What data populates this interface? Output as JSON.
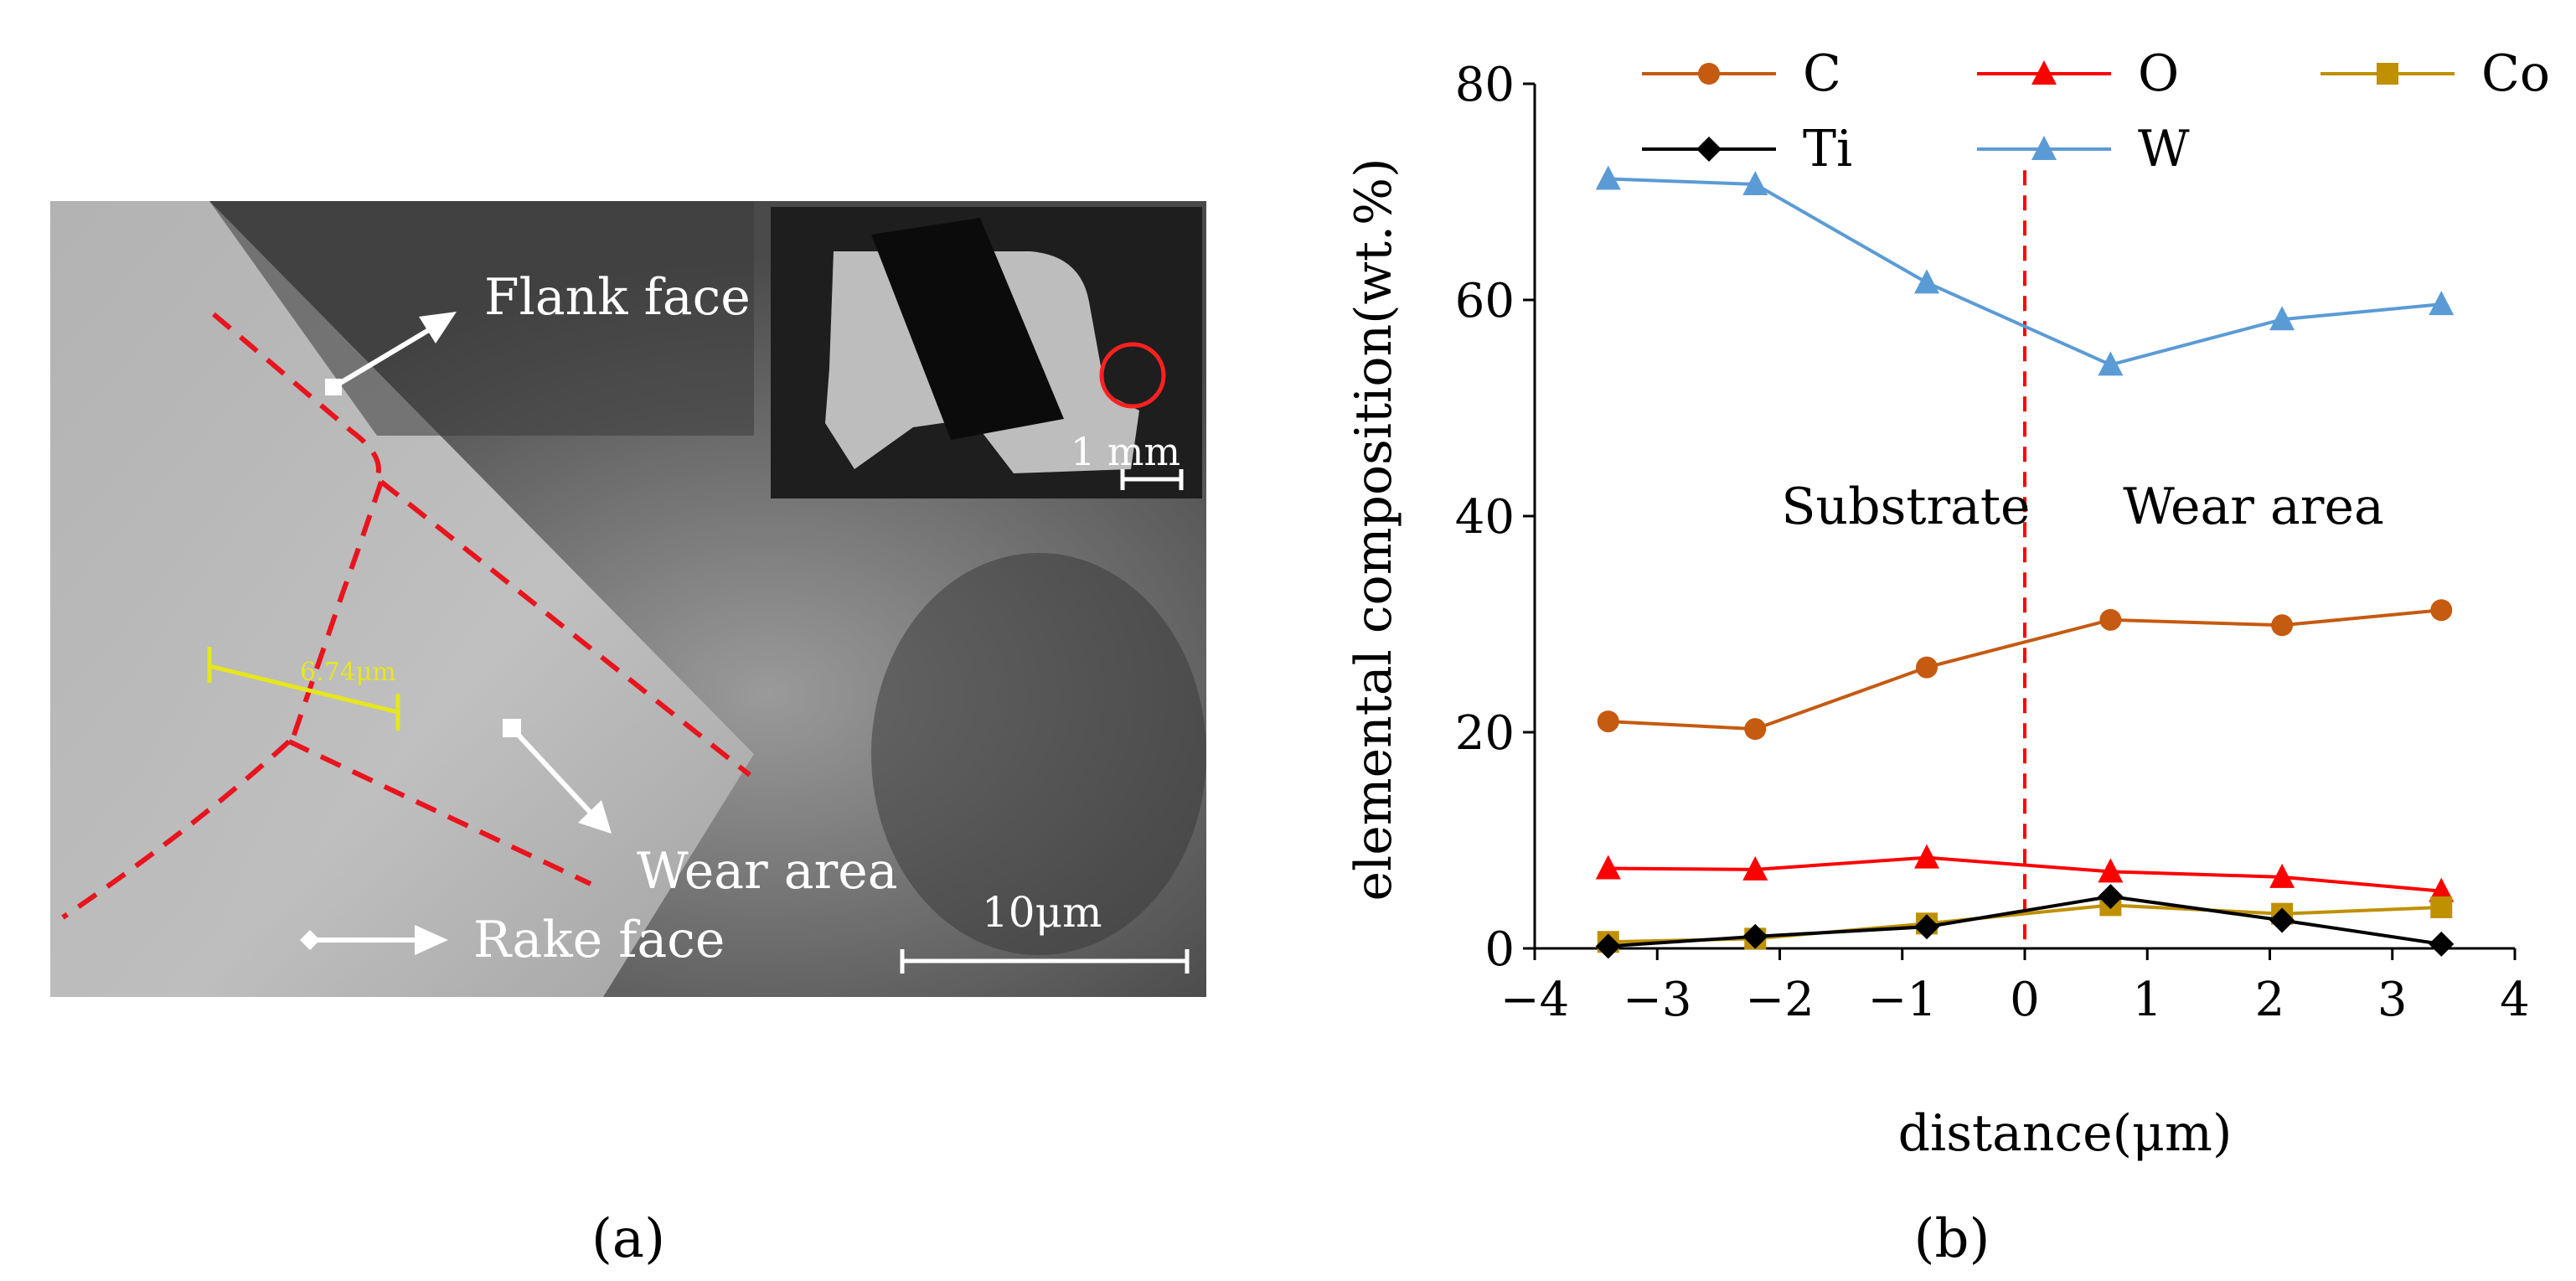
{
  "panel_a": {
    "caption": "(a)",
    "labels": {
      "flank_face": "Flank face",
      "wear_area": "Wear area",
      "rake_face": "Rake face"
    },
    "measurement": "6.74μm",
    "scale_bar": "10μm",
    "inset_scale": "1 mm",
    "colors": {
      "dashed": "#e8141e",
      "measure": "#e6e61e",
      "arrow": "#ffffff"
    }
  },
  "panel_b": {
    "caption": "(b)"
  },
  "chart_data": {
    "type": "line",
    "xlabel": "distance(μm)",
    "ylabel": "elemental composition(wt.%)",
    "xlim": [
      -4,
      4
    ],
    "ylim": [
      0,
      80
    ],
    "xticks": [
      -4,
      -3,
      -2,
      -1,
      0,
      1,
      2,
      3,
      4
    ],
    "xtick_labels": [
      "−4",
      "−3",
      "−2",
      "−1",
      "0",
      "1",
      "2",
      "3",
      "4"
    ],
    "yticks": [
      0,
      20,
      40,
      60,
      80
    ],
    "ytick_labels": [
      "0",
      "20",
      "40",
      "60",
      "80"
    ],
    "x": [
      -3.4,
      -2.2,
      -0.8,
      0.7,
      2.1,
      3.4
    ],
    "series": [
      {
        "name": "C",
        "color": "#c55a11",
        "marker": "circle",
        "values": [
          21.0,
          20.3,
          26.0,
          30.4,
          29.9,
          31.3
        ]
      },
      {
        "name": "O",
        "color": "#ff0000",
        "marker": "triangle",
        "values": [
          7.4,
          7.3,
          8.4,
          7.1,
          6.6,
          5.3
        ]
      },
      {
        "name": "Co",
        "color": "#bf9000",
        "marker": "square",
        "values": [
          0.6,
          0.9,
          2.3,
          4.0,
          3.2,
          3.8
        ]
      },
      {
        "name": "Ti",
        "color": "#000000",
        "marker": "diamond",
        "values": [
          0.2,
          1.1,
          2.0,
          4.8,
          2.6,
          0.4
        ]
      },
      {
        "name": "W",
        "color": "#5b9bd5",
        "marker": "triangle",
        "values": [
          71.2,
          70.7,
          61.6,
          54.0,
          58.2,
          59.6
        ]
      }
    ],
    "divider_x": 0,
    "divider_color": "#ff0000",
    "annotations": {
      "left": "Substrate",
      "right": "Wear area"
    },
    "legend_position": "top"
  }
}
